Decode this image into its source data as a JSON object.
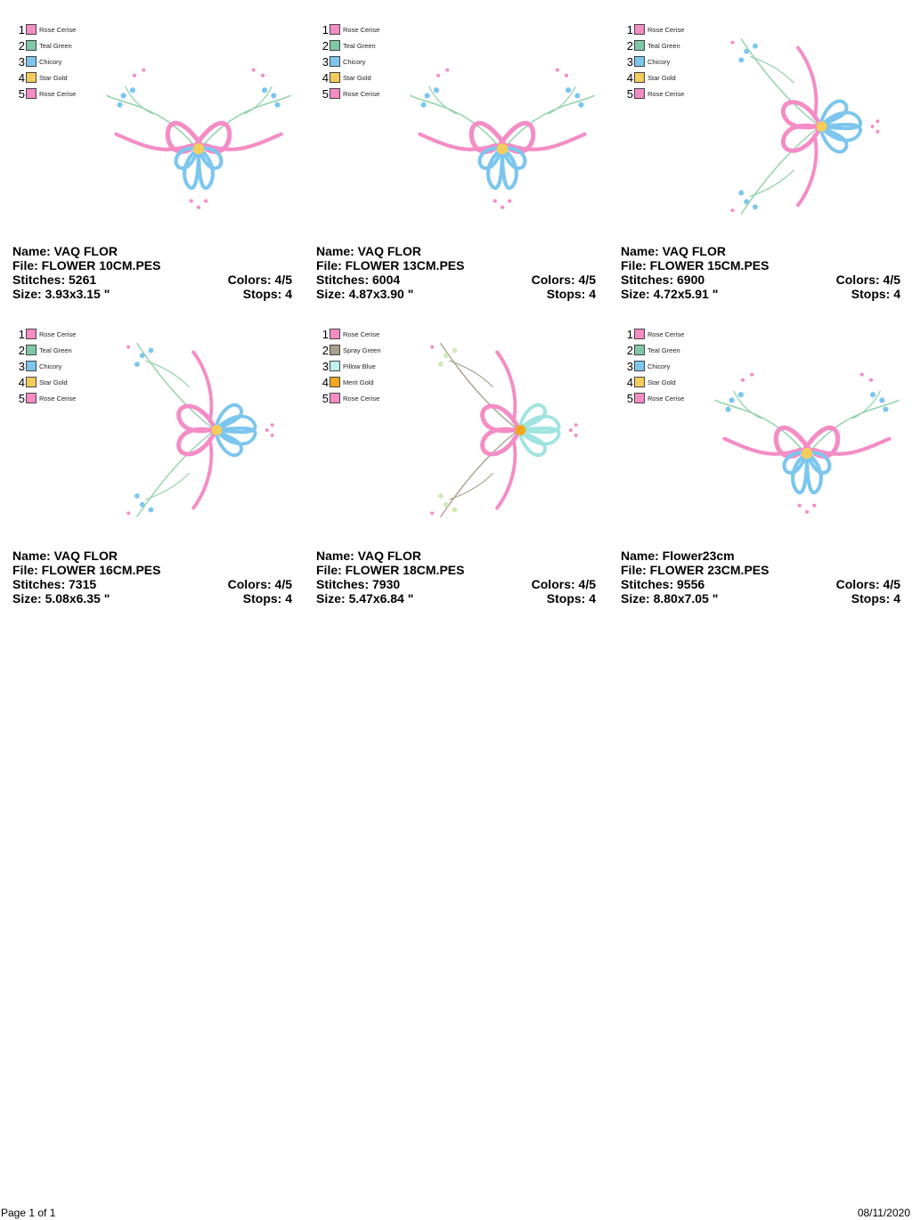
{
  "palette": {
    "pink": "#f48cc5",
    "pink_dark": "#e36aab",
    "teal": "#7ec8a4",
    "blue": "#7cc6ee",
    "blue_dark": "#4aa8e0",
    "gold": "#f4cc5c",
    "gold_deep": "#f2a81c",
    "spray": "#a89f8a",
    "pillow": "#bff0ee",
    "leaf": "#8fd0a7"
  },
  "cards": [
    {
      "legend": [
        {
          "num": "1",
          "label": "Rose Cerise",
          "color": "#f48cc5"
        },
        {
          "num": "2",
          "label": "Teal Green",
          "color": "#7ec8a4"
        },
        {
          "num": "3",
          "label": "Chicory",
          "color": "#7cc6ee"
        },
        {
          "num": "4",
          "label": "Star Gold",
          "color": "#f4cc5c"
        },
        {
          "num": "5",
          "label": "Rose Cerise",
          "color": "#f48cc5"
        }
      ],
      "name_label": "Name: VAQ FLOR",
      "file_label": "File: FLOWER 10CM.PES",
      "stitches_label": "Stitches: 5261",
      "colors_label": "Colors: 4/5",
      "size_label": "Size: 3.93x3.15 \"",
      "stops_label": "Stops: 4"
    },
    {
      "legend": [
        {
          "num": "1",
          "label": "Rose Cerise",
          "color": "#f48cc5"
        },
        {
          "num": "2",
          "label": "Teal Green",
          "color": "#7ec8a4"
        },
        {
          "num": "3",
          "label": "Chicory",
          "color": "#7cc6ee"
        },
        {
          "num": "4",
          "label": "Star Gold",
          "color": "#f4cc5c"
        },
        {
          "num": "5",
          "label": "Rose Cerise",
          "color": "#f48cc5"
        }
      ],
      "name_label": "Name: VAQ FLOR",
      "file_label": "File: FLOWER 13CM.PES",
      "stitches_label": "Stitches: 6004",
      "colors_label": "Colors: 4/5",
      "size_label": "Size: 4.87x3.90 \"",
      "stops_label": "Stops: 4"
    },
    {
      "legend": [
        {
          "num": "1",
          "label": "Rose Cerise",
          "color": "#f48cc5"
        },
        {
          "num": "2",
          "label": "Teal Green",
          "color": "#7ec8a4"
        },
        {
          "num": "3",
          "label": "Chicory",
          "color": "#7cc6ee"
        },
        {
          "num": "4",
          "label": "Star Gold",
          "color": "#f4cc5c"
        },
        {
          "num": "5",
          "label": "Rose Cerise",
          "color": "#f48cc5"
        }
      ],
      "name_label": "Name: VAQ FLOR",
      "file_label": "File: FLOWER 15CM.PES",
      "stitches_label": "Stitches: 6900",
      "colors_label": "Colors: 4/5",
      "size_label": "Size: 4.72x5.91 \"",
      "stops_label": "Stops: 4"
    },
    {
      "legend": [
        {
          "num": "1",
          "label": "Rose Cerise",
          "color": "#f48cc5"
        },
        {
          "num": "2",
          "label": "Teal Green",
          "color": "#7ec8a4"
        },
        {
          "num": "3",
          "label": "Chicory",
          "color": "#7cc6ee"
        },
        {
          "num": "4",
          "label": "Star Gold",
          "color": "#f4cc5c"
        },
        {
          "num": "5",
          "label": "Rose Cerise",
          "color": "#f48cc5"
        }
      ],
      "name_label": "Name: VAQ FLOR",
      "file_label": "File: FLOWER 16CM.PES",
      "stitches_label": "Stitches: 7315",
      "colors_label": "Colors: 4/5",
      "size_label": "Size: 5.08x6.35 \"",
      "stops_label": "Stops: 4"
    },
    {
      "legend": [
        {
          "num": "1",
          "label": "Rose Cerise",
          "color": "#f48cc5"
        },
        {
          "num": "2",
          "label": "Spray Green",
          "color": "#a89f8a"
        },
        {
          "num": "3",
          "label": "Pillow Blue",
          "color": "#bff0ee"
        },
        {
          "num": "4",
          "label": "Merit Gold",
          "color": "#f2a81c"
        },
        {
          "num": "5",
          "label": "Rose Cerise",
          "color": "#f48cc5"
        }
      ],
      "name_label": "Name: VAQ FLOR",
      "file_label": "File: FLOWER 18CM.PES",
      "stitches_label": "Stitches: 7930",
      "colors_label": "Colors: 4/5",
      "size_label": "Size: 5.47x6.84 \"",
      "stops_label": "Stops: 4"
    },
    {
      "legend": [
        {
          "num": "1",
          "label": "Rose Cerise",
          "color": "#f48cc5"
        },
        {
          "num": "2",
          "label": "Teal Green",
          "color": "#7ec8a4"
        },
        {
          "num": "3",
          "label": "Chicory",
          "color": "#7cc6ee"
        },
        {
          "num": "4",
          "label": "Star Gold",
          "color": "#f4cc5c"
        },
        {
          "num": "5",
          "label": "Rose Cerise",
          "color": "#f48cc5"
        }
      ],
      "name_label": "Name: Flower23cm",
      "file_label": "File: FLOWER 23CM.PES",
      "stitches_label": "Stitches: 9556",
      "colors_label": "Colors: 4/5",
      "size_label": "Size: 8.80x7.05 \"",
      "stops_label": "Stops: 4"
    }
  ],
  "footer": {
    "page_label": "Page 1 of 1",
    "date": "08/11/2020"
  }
}
